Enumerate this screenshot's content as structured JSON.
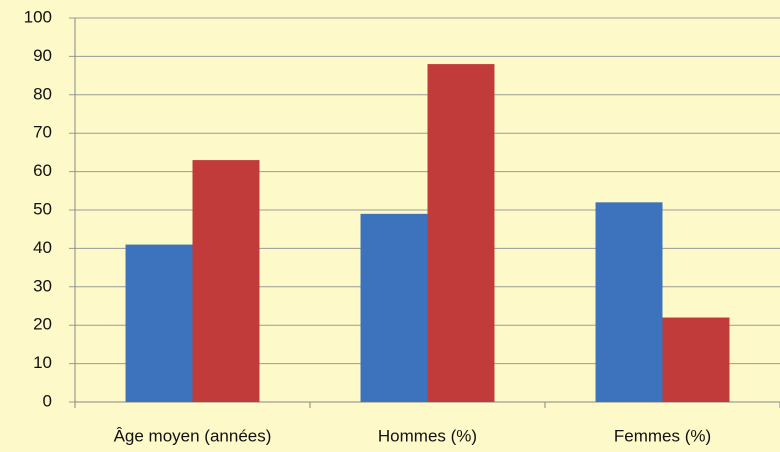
{
  "chart_data": {
    "type": "bar",
    "categories": [
      "Âge moyen (années)",
      "Hommes (%)",
      "Femmes (%)"
    ],
    "series": [
      {
        "color": "#3d73bd",
        "values": [
          41,
          49,
          52
        ]
      },
      {
        "color": "#c23b3b",
        "values": [
          63,
          88,
          22
        ]
      }
    ],
    "ylim": [
      0,
      100
    ],
    "yticks": [
      0,
      10,
      20,
      30,
      40,
      50,
      60,
      70,
      80,
      90,
      100
    ],
    "grid": true
  }
}
